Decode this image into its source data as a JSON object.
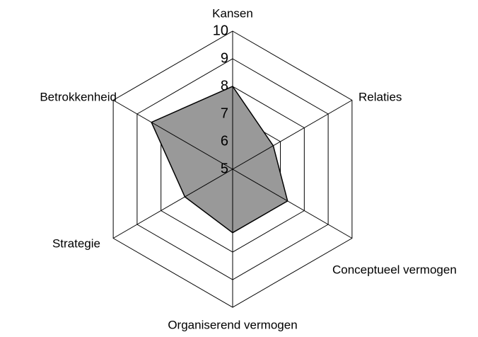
{
  "chart_data": {
    "type": "radar",
    "categories": [
      "Kansen",
      "Relaties",
      "Conceptueel vermogen",
      "Organiserend vermogen",
      "Strategie",
      "Betrokkenheid"
    ],
    "values": [
      8,
      6.7,
      7.3,
      7.3,
      7,
      8.4
    ],
    "color": "#999999",
    "ylim": [
      5,
      10
    ],
    "yticks": [
      5,
      6,
      7,
      8,
      9,
      10
    ],
    "grid": true
  }
}
